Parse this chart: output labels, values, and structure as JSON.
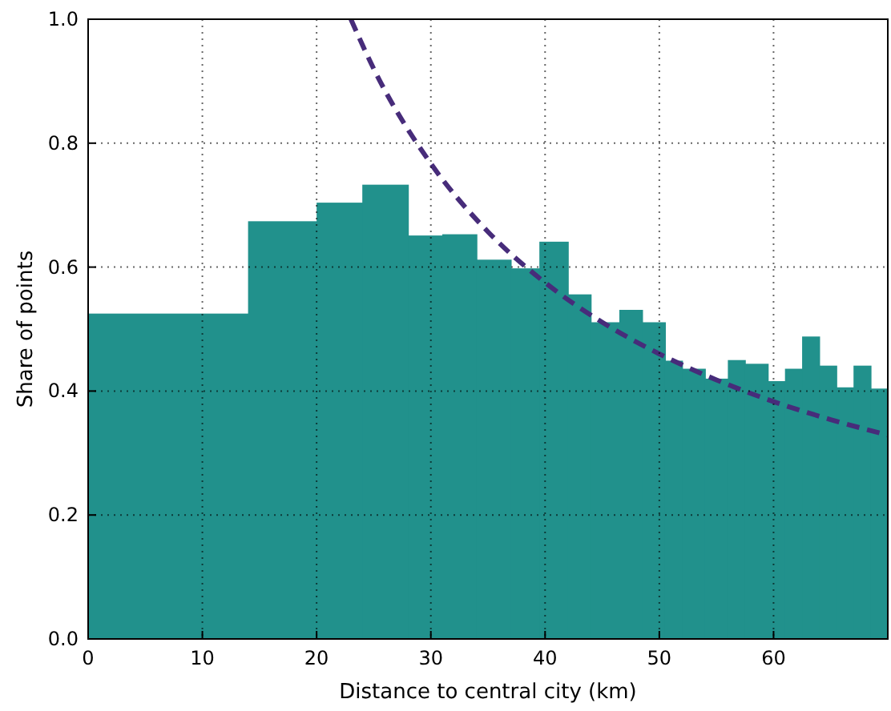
{
  "chart_data": {
    "type": "histogram",
    "xlabel": "Distance to central city (km)",
    "ylabel": "Share of points",
    "bins": [
      0,
      14,
      20,
      24,
      28,
      31,
      34,
      37,
      39.5,
      42,
      44,
      46.5,
      48.5,
      50.5,
      52,
      54,
      56,
      57.5,
      59.5,
      61,
      62.5,
      64,
      65.5,
      67,
      68.5,
      70
    ],
    "values": [
      0.525,
      0.674,
      0.704,
      0.733,
      0.651,
      0.653,
      0.612,
      0.598,
      0.641,
      0.556,
      0.511,
      0.531,
      0.511,
      0.449,
      0.436,
      0.42,
      0.45,
      0.444,
      0.416,
      0.436,
      0.488,
      0.441,
      0.406,
      0.441,
      0.404
    ],
    "color": "#21918c",
    "series": [
      {
        "type": "line",
        "color": "#472c7a",
        "line_style": "dashed",
        "x": [
          23,
          25,
          30,
          35,
          40,
          45,
          50,
          55,
          60,
          65,
          70
        ],
        "values": [
          1.0,
          0.92,
          0.767,
          0.657,
          0.575,
          0.511,
          0.46,
          0.418,
          0.383,
          0.354,
          0.329
        ]
      }
    ],
    "xlim": [
      0,
      70
    ],
    "ylim": [
      0,
      1
    ],
    "xticks": [
      0,
      10,
      20,
      30,
      40,
      50,
      60
    ],
    "yticks": [
      {
        "value": 0,
        "label": "0.0"
      },
      {
        "value": 0.2,
        "label": "0.2"
      },
      {
        "value": 0.4,
        "label": "0.4"
      },
      {
        "value": 0.6,
        "label": "0.6"
      },
      {
        "value": 0.8,
        "label": "0.8"
      },
      {
        "value": 1,
        "label": "1.0"
      }
    ],
    "grid": true
  }
}
